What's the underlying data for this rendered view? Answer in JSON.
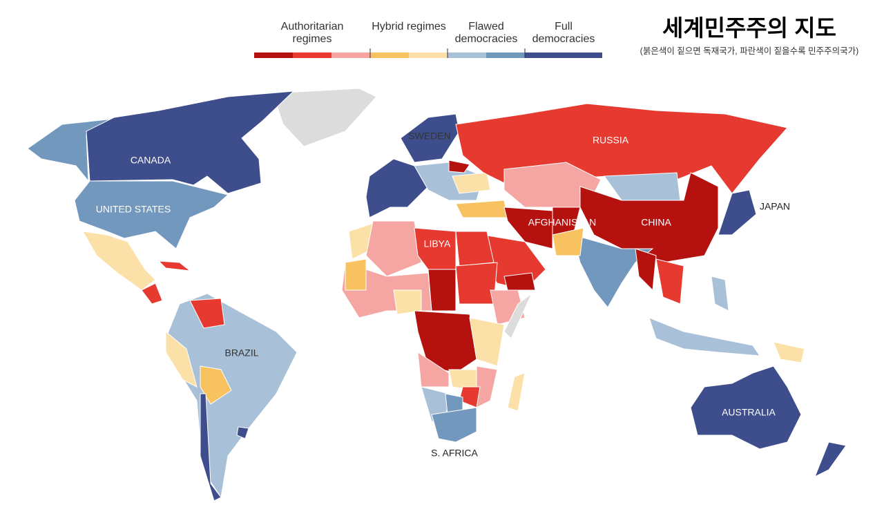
{
  "title": "세계민주주의 지도",
  "subtitle": "(붉은색이 짙으면 독재국가, 파란색이 짙을수록 민주주의국가)",
  "legend": {
    "groups": [
      {
        "label": "Authoritarian regimes",
        "colors": [
          "#b5120f",
          "#e6392f",
          "#f5a5a2"
        ]
      },
      {
        "label": "Hybrid regimes",
        "colors": [
          "#f7c25f",
          "#fbe1a8"
        ]
      },
      {
        "label": "Flawed democracies",
        "colors": [
          "#a9c0d9",
          "#7398bd"
        ]
      },
      {
        "label": "Full democracies",
        "colors": [
          "#3e4e8c",
          "#3e4e8c"
        ]
      }
    ]
  },
  "map_labels": [
    "CANADA",
    "UNITED STATES",
    "BRAZIL",
    "SWEDEN",
    "RUSSIA",
    "AFGHANISTAN",
    "CHINA",
    "JAPAN",
    "LIBYA",
    "S. AFRICA",
    "AUSTRALIA"
  ]
}
